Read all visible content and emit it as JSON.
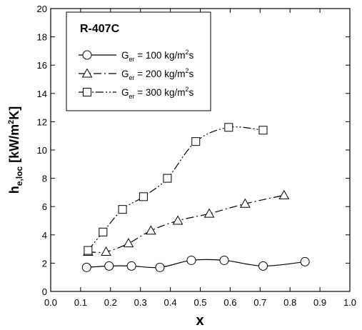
{
  "chart_data": {
    "type": "line",
    "title": "",
    "xlabel": "x",
    "ylabel_main": "h",
    "ylabel_sub": "e,loc",
    "ylabel_unit_pre": " [kW/m",
    "ylabel_unit_sup": "2",
    "ylabel_unit_post": "K]",
    "xlim": [
      0.0,
      1.0
    ],
    "ylim": [
      0,
      20
    ],
    "xticks": [
      0.0,
      0.1,
      0.2,
      0.3,
      0.4,
      0.5,
      0.6,
      0.7,
      0.8,
      0.9,
      1.0
    ],
    "xtick_labels": [
      "0.0",
      "0.1",
      "0.2",
      "0.3",
      "0.4",
      "0.5",
      "0.6",
      "0.7",
      "0.8",
      "0.9",
      "1.0"
    ],
    "yticks": [
      0,
      2,
      4,
      6,
      8,
      10,
      12,
      14,
      16,
      18,
      20
    ],
    "ytick_labels": [
      "0",
      "2",
      "4",
      "6",
      "8",
      "10",
      "12",
      "14",
      "16",
      "18",
      "20"
    ],
    "grid": false,
    "legend": {
      "placement": "top-left",
      "title": "R-407C",
      "entries": [
        {
          "pre": "G",
          "sub": "er",
          "mid": " = 100 kg/m",
          "sup": "2",
          "post": "s",
          "marker": "circle",
          "dash": "solid"
        },
        {
          "pre": "G",
          "sub": "er",
          "mid": " = 200 kg/m",
          "sup": "2",
          "post": "s",
          "marker": "triangle",
          "dash": "dash-dot"
        },
        {
          "pre": "G",
          "sub": "er",
          "mid": " = 300 kg/m",
          "sup": "2",
          "post": "s",
          "marker": "square",
          "dash": "dash-dot-dot"
        }
      ]
    },
    "series": [
      {
        "marker": "circle",
        "dash": "solid",
        "x": [
          0.12,
          0.195,
          0.27,
          0.365,
          0.47,
          0.58,
          0.71,
          0.85
        ],
        "y": [
          1.7,
          1.8,
          1.8,
          1.7,
          2.2,
          2.2,
          1.8,
          2.1
        ]
      },
      {
        "marker": "triangle",
        "dash": "dash-dot",
        "x": [
          0.125,
          0.185,
          0.26,
          0.335,
          0.425,
          0.53,
          0.65,
          0.78
        ],
        "y": [
          2.8,
          2.8,
          3.4,
          4.3,
          5.0,
          5.5,
          6.2,
          6.8
        ]
      },
      {
        "marker": "square",
        "dash": "dash-dot-dot",
        "x": [
          0.125,
          0.175,
          0.24,
          0.31,
          0.39,
          0.485,
          0.595,
          0.71
        ],
        "y": [
          2.9,
          4.2,
          5.8,
          6.7,
          8.0,
          10.6,
          11.6,
          11.4
        ]
      }
    ]
  }
}
